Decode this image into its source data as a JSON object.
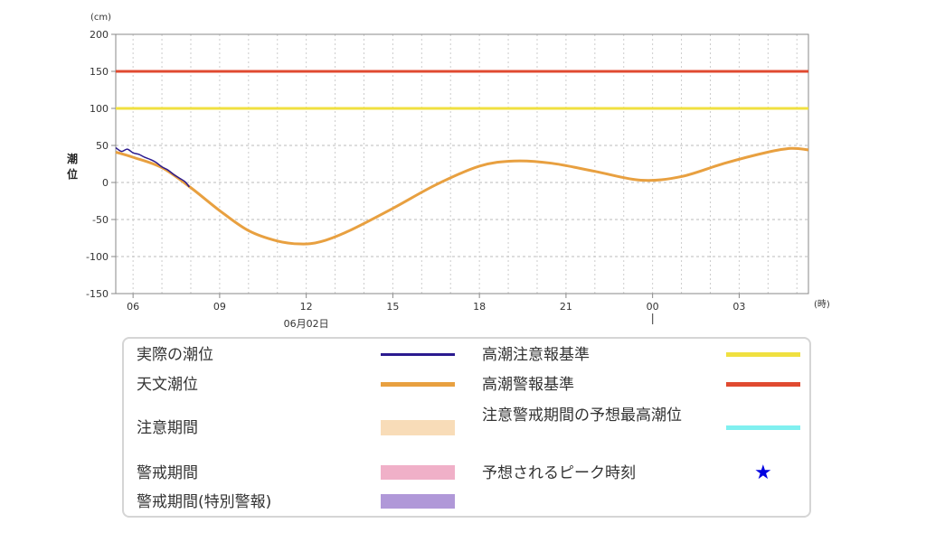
{
  "chart_data": {
    "type": "line",
    "ylabel": "潮位",
    "y_unit": "(cm)",
    "x_unit": "(時)",
    "ylim": [
      -150,
      200
    ],
    "yticks": [
      -150,
      -100,
      -50,
      0,
      50,
      100,
      150,
      200
    ],
    "xlim_hours": [
      5.4,
      29.4
    ],
    "xticks": [
      {
        "hour": 6,
        "label": "06"
      },
      {
        "hour": 9,
        "label": "09"
      },
      {
        "hour": 12,
        "label": "12"
      },
      {
        "hour": 15,
        "label": "15"
      },
      {
        "hour": 18,
        "label": "18"
      },
      {
        "hour": 21,
        "label": "21"
      },
      {
        "hour": 24,
        "label": "00"
      },
      {
        "hour": 27,
        "label": "03"
      }
    ],
    "date_label": "06月02日",
    "date_hour": 12,
    "day_boundary_hour": 24,
    "grid": true,
    "series": [
      {
        "name": "実際の潮位",
        "color": "#2b1a8f",
        "x": [
          5.4,
          5.6,
          5.8,
          6.0,
          6.2,
          6.4,
          6.6,
          6.8,
          7.0,
          7.2,
          7.4,
          7.6,
          7.8,
          7.95
        ],
        "y": [
          47,
          42,
          45,
          40,
          38,
          34,
          31,
          27,
          21,
          17,
          11,
          6,
          1,
          -6
        ]
      },
      {
        "name": "天文潮位",
        "color": "#e8a040",
        "x": [
          5.4,
          6.0,
          7.0,
          8.0,
          9.0,
          10.0,
          11.0,
          11.8,
          12.5,
          13.5,
          15.0,
          16.5,
          18.0,
          19.2,
          20.5,
          22.0,
          23.6,
          25.0,
          26.5,
          28.0,
          28.8,
          29.4
        ],
        "y": [
          41,
          34,
          20,
          -7,
          -38,
          -65,
          -79,
          -83,
          -80,
          -65,
          -35,
          -3,
          22,
          29,
          26,
          15,
          3,
          8,
          26,
          41,
          46,
          44
        ]
      }
    ],
    "reference_lines": [
      {
        "name": "高潮注意報基準",
        "value": 100,
        "color": "#f0e040"
      },
      {
        "name": "高潮警報基準",
        "value": 150,
        "color": "#e04a30"
      }
    ]
  },
  "legend": {
    "items": [
      {
        "label": "実際の潮位",
        "color": "#2b1a8f",
        "kind": "line"
      },
      {
        "label": "天文潮位",
        "color": "#e8a040",
        "kind": "line"
      },
      {
        "label": "注意期間",
        "color": "#f8dcb8",
        "kind": "box"
      },
      {
        "label": "警戒期間",
        "color": "#f0b0c8",
        "kind": "box"
      },
      {
        "label": "警戒期間(特別警報)",
        "color": "#b098d8",
        "kind": "box"
      },
      {
        "label": "高潮注意報基準",
        "color": "#f0e040",
        "kind": "line"
      },
      {
        "label": "高潮警報基準",
        "color": "#e04a30",
        "kind": "line"
      },
      {
        "label": "注意警戒期間の予想最高潮位",
        "color": "#80f0f0",
        "kind": "line"
      },
      {
        "label": "予想されるピーク時刻",
        "color": "#0000e0",
        "kind": "star",
        "glyph": "★"
      }
    ]
  }
}
